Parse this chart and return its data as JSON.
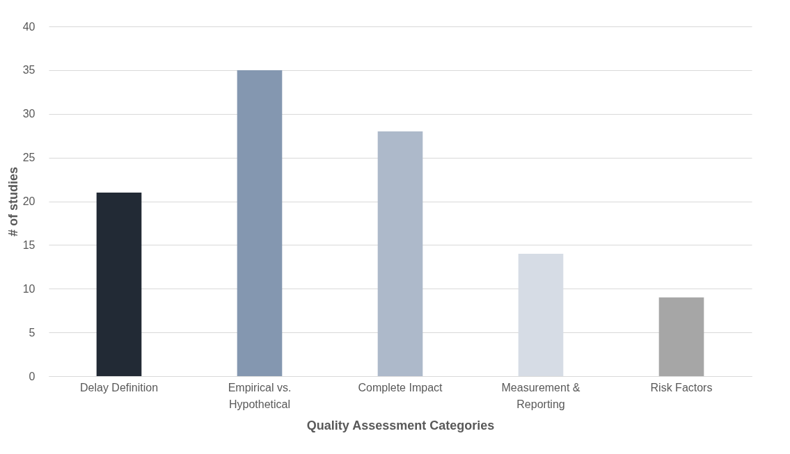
{
  "chart_data": {
    "type": "bar",
    "xlabel": "Quality Assessment Categories",
    "ylabel": "# of studies",
    "categories": [
      "Delay Definition",
      "Empirical vs. Hypothetical",
      "Complete Impact",
      "Measurement & Reporting",
      "Risk Factors"
    ],
    "values": [
      21,
      35,
      28,
      14,
      9
    ],
    "colors": [
      "#222a35",
      "#8497b0",
      "#adb9ca",
      "#d6dce5",
      "#a6a6a6"
    ],
    "ylim": [
      0,
      40
    ],
    "yticks": [
      0,
      5,
      10,
      15,
      20,
      25,
      30,
      35,
      40
    ],
    "grid": "y",
    "legend": false
  }
}
